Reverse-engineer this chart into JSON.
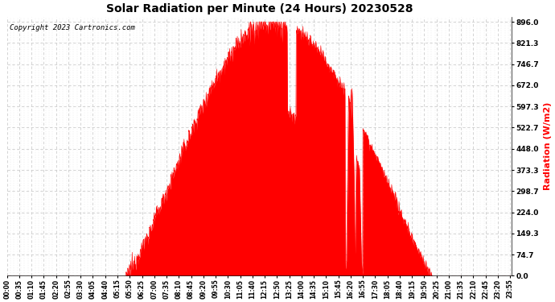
{
  "title": "Solar Radiation per Minute (24 Hours) 20230528",
  "ylabel": "Radiation (W/m2)",
  "ylabel_color": "#ff0000",
  "copyright_text": "Copyright 2023 Cartronics.com",
  "background_color": "#ffffff",
  "fill_color": "#ff0000",
  "line_color": "#ff0000",
  "grid_color": "#cccccc",
  "y_ticks": [
    0.0,
    74.7,
    149.3,
    224.0,
    298.7,
    373.3,
    448.0,
    522.7,
    597.3,
    672.0,
    746.7,
    821.3,
    896.0
  ],
  "y_max": 896.0,
  "y_min": 0.0,
  "total_minutes": 1440,
  "x_label_interval": 35,
  "sunrise_minute": 335,
  "sunset_minute": 1215,
  "peak_minute": 760,
  "peak_value": 896.0
}
